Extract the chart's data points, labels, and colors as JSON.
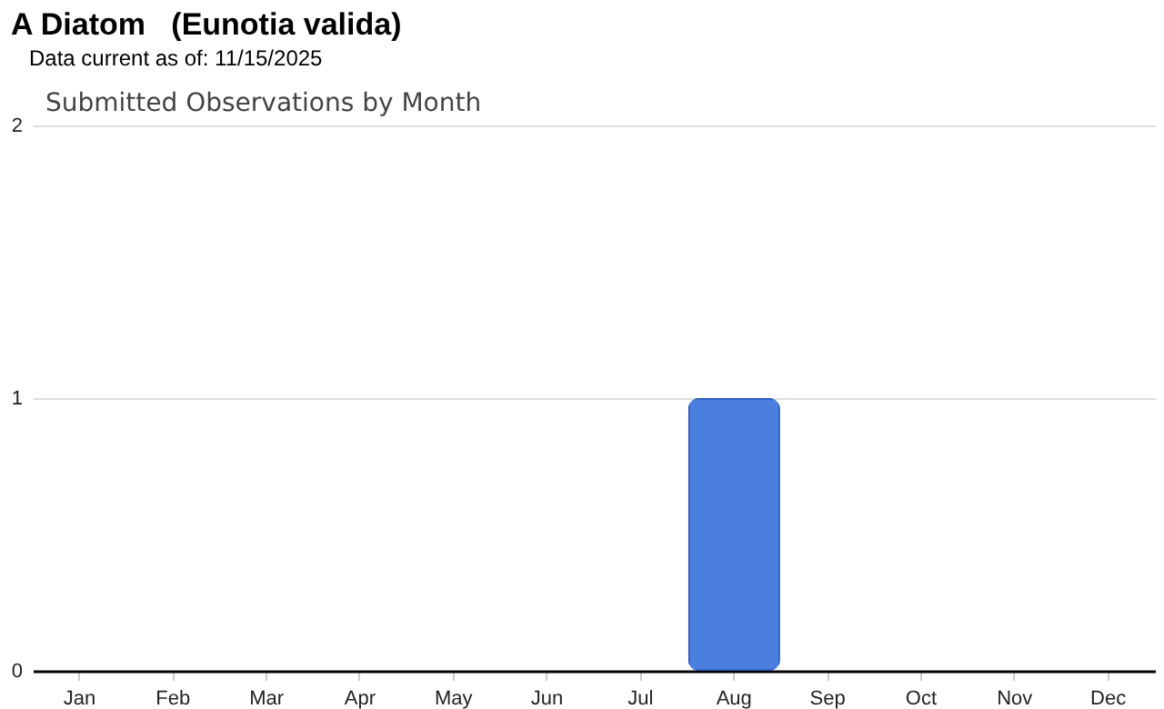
{
  "chart_data": {
    "type": "bar",
    "title": "A Diatom   (Eunotia valida)",
    "subtitle": "Data current as of: 11/15/2025",
    "annotations": [
      "Submitted Observations by Month"
    ],
    "categories": [
      "Jan",
      "Feb",
      "Mar",
      "Apr",
      "May",
      "Jun",
      "Jul",
      "Aug",
      "Sep",
      "Oct",
      "Nov",
      "Dec"
    ],
    "values": [
      0,
      0,
      0,
      0,
      0,
      0,
      0,
      1,
      0,
      0,
      0,
      0
    ],
    "color": "#4a7fe0",
    "ylim": [
      0,
      2
    ],
    "yticks": [
      0,
      1,
      2
    ],
    "grid": "y"
  }
}
